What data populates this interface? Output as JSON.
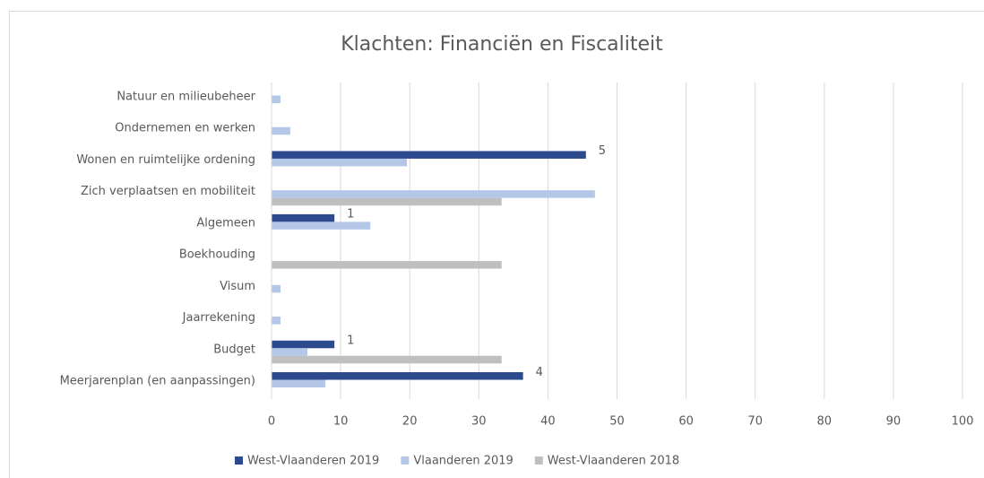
{
  "chart_data": {
    "type": "bar",
    "orientation": "horizontal",
    "title": "Klachten: Financiën en Fiscaliteit",
    "categories": [
      "Natuur en milieubeheer",
      "Ondernemen en werken",
      "Wonen en ruimtelijke ordening",
      "Zich verplaatsen en mobiliteit",
      "Algemeen",
      "Boekhouding",
      "Visum",
      "Jaarrekening",
      "Budget",
      "Meerjarenplan (en aanpassingen)"
    ],
    "series": [
      {
        "name": "West-Vlaanderen 2019",
        "color": "#2e4a8e",
        "values": [
          0,
          0,
          45.5,
          0,
          9.1,
          0,
          0,
          0,
          9.1,
          36.4
        ],
        "counts": [
          null,
          null,
          5,
          null,
          1,
          null,
          null,
          null,
          1,
          4
        ]
      },
      {
        "name": "Vlaanderen 2019",
        "color": "#b4c7e7",
        "values": [
          1.3,
          2.7,
          19.6,
          46.8,
          14.3,
          0,
          1.3,
          1.3,
          5.2,
          7.8
        ]
      },
      {
        "name": "West-Vlaanderen 2018",
        "color": "#bfbfbf",
        "values": [
          0,
          0,
          0,
          33.3,
          0,
          33.3,
          0,
          0,
          33.3,
          0
        ]
      }
    ],
    "xlim": [
      0,
      100
    ],
    "xticks": [
      0,
      10,
      20,
      30,
      40,
      50,
      60,
      70,
      80,
      90,
      100
    ],
    "grid": true,
    "legend": "bottom"
  }
}
